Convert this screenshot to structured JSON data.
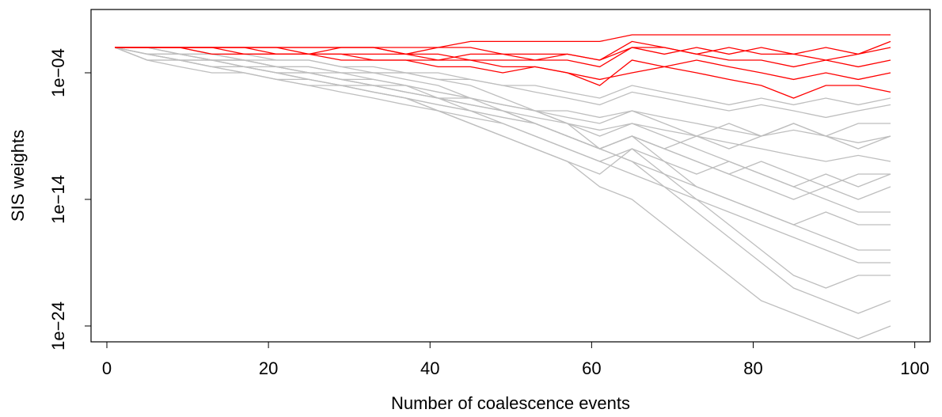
{
  "chart_data": {
    "type": "line",
    "ylog": true,
    "xlabel": "Number of coalescence events",
    "ylabel": "SIS weights",
    "xlim": [
      -1.96,
      101.9
    ],
    "xticks": [
      0,
      20,
      40,
      60,
      80,
      100
    ],
    "ylim": [
      10,
      5.6e-26
    ],
    "yticks": [
      {
        "value": 0.0001,
        "label": "1e−04"
      },
      {
        "value": 1e-14,
        "label": "1e−14"
      },
      {
        "value": 1e-24,
        "label": "1e−24"
      }
    ],
    "x": [
      1,
      5,
      9,
      13,
      17,
      21,
      25,
      29,
      33,
      37,
      41,
      45,
      49,
      53,
      57,
      61,
      65,
      69,
      73,
      77,
      81,
      85,
      89,
      93,
      97
    ],
    "series": [
      {
        "color": "#bebebe",
        "values": [
          0.01,
          0.003,
          0.001,
          0.001,
          0.0003,
          0.0001,
          3e-05,
          1e-05,
          1e-05,
          3e-06,
          1e-06,
          1e-06,
          3e-07,
          1e-07,
          1e-07,
          3e-08,
          1e-07,
          3e-08,
          1e-08,
          3e-09,
          1e-09,
          3e-09,
          1e-09,
          3e-10,
          1e-09
        ]
      },
      {
        "color": "#bebebe",
        "values": [
          0.01,
          0.001,
          0.001,
          0.0003,
          0.0003,
          0.0001,
          0.0001,
          3e-05,
          3e-05,
          1e-05,
          1e-06,
          3e-07,
          1e-07,
          1e-08,
          1e-09,
          1e-10,
          1e-09,
          1e-10,
          1e-11,
          1e-12,
          1e-11,
          1e-12,
          1e-13,
          1e-12,
          1e-12
        ]
      },
      {
        "color": "#bebebe",
        "values": [
          0.01,
          0.003,
          0.003,
          0.001,
          0.001,
          0.0003,
          0.0001,
          0.0001,
          3e-05,
          1e-05,
          3e-06,
          1e-06,
          3e-07,
          1e-07,
          1e-08,
          1e-09,
          1e-08,
          1e-09,
          1e-10,
          1e-11,
          1e-12,
          1e-13,
          1e-14,
          1e-15,
          1e-15
        ]
      },
      {
        "color": "#bebebe",
        "values": [
          0.01,
          0.003,
          0.001,
          0.001,
          0.001,
          0.0003,
          0.0003,
          0.0001,
          0.0001,
          3e-05,
          1e-05,
          1e-06,
          1e-07,
          1e-08,
          1e-09,
          1e-10,
          1e-11,
          1e-12,
          1e-13,
          1e-14,
          1e-15,
          1e-16,
          1e-17,
          1e-18,
          1e-18
        ]
      },
      {
        "color": "#bebebe",
        "values": [
          0.01,
          0.01,
          0.003,
          0.003,
          0.001,
          0.001,
          0.001,
          0.0003,
          0.0001,
          0.0001,
          3e-05,
          1e-05,
          1e-06,
          1e-07,
          1e-08,
          1e-10,
          1e-11,
          1e-13,
          1e-15,
          1e-17,
          1e-19,
          1e-21,
          1e-22,
          1e-23,
          1e-22
        ]
      },
      {
        "color": "#bebebe",
        "values": [
          0.01,
          0.003,
          0.003,
          0.001,
          0.0003,
          0.0001,
          3e-05,
          1e-05,
          3e-06,
          1e-06,
          1e-07,
          1e-08,
          1e-09,
          1e-10,
          1e-11,
          1e-12,
          1e-10,
          1e-12,
          1e-14,
          1e-16,
          1e-18,
          1e-20,
          1e-21,
          1e-20,
          1e-20
        ]
      },
      {
        "color": "#bebebe",
        "values": [
          0.01,
          0.01,
          0.003,
          0.001,
          0.001,
          0.0003,
          0.0003,
          0.0001,
          0.0001,
          0.0001,
          3e-05,
          3e-05,
          1e-05,
          1e-05,
          3e-06,
          1e-06,
          1e-05,
          3e-06,
          1e-06,
          3e-07,
          1e-06,
          3e-07,
          1e-06,
          3e-07,
          1e-06
        ]
      },
      {
        "color": "#bebebe",
        "values": [
          0.01,
          0.001,
          0.0003,
          0.0001,
          0.0001,
          3e-05,
          1e-05,
          1e-05,
          3e-06,
          1e-06,
          3e-07,
          1e-07,
          3e-08,
          1e-08,
          1e-09,
          1e-10,
          1e-09,
          1e-10,
          1e-09,
          1e-10,
          1e-09,
          1e-08,
          1e-09,
          1e-10,
          1e-09
        ]
      },
      {
        "color": "#bebebe",
        "values": [
          0.01,
          0.003,
          0.001,
          0.0003,
          0.0001,
          3e-05,
          1e-05,
          3e-06,
          1e-06,
          3e-07,
          1e-07,
          3e-08,
          1e-08,
          1e-09,
          1e-10,
          1e-11,
          1e-10,
          1e-11,
          1e-12,
          1e-11,
          1e-12,
          1e-13,
          1e-12,
          1e-13,
          1e-12
        ]
      },
      {
        "color": "#bebebe",
        "values": [
          0.01,
          0.01,
          0.01,
          0.003,
          0.003,
          0.001,
          0.001,
          0.0003,
          0.0003,
          0.0001,
          0.0001,
          3e-05,
          1e-05,
          3e-06,
          1e-06,
          3e-07,
          3e-06,
          1e-06,
          3e-07,
          1e-07,
          3e-07,
          1e-07,
          3e-08,
          1e-07,
          3e-07
        ]
      },
      {
        "color": "#bebebe",
        "values": [
          0.01,
          0.003,
          0.001,
          0.001,
          0.0003,
          0.0001,
          0.0001,
          3e-05,
          1e-05,
          3e-06,
          1e-06,
          3e-07,
          1e-07,
          1e-08,
          1e-09,
          1e-10,
          1e-09,
          1e-11,
          1e-13,
          1e-14,
          1e-15,
          1e-16,
          1e-15,
          1e-16,
          1e-16
        ]
      },
      {
        "color": "#bebebe",
        "values": [
          0.01,
          0.001,
          0.001,
          0.0003,
          0.0001,
          3e-05,
          3e-05,
          1e-05,
          3e-06,
          1e-06,
          3e-07,
          1e-07,
          3e-08,
          1e-08,
          1e-09,
          1e-10,
          1e-09,
          1e-10,
          1e-11,
          1e-12,
          1e-13,
          1e-14,
          1e-13,
          1e-14,
          1e-13
        ]
      },
      {
        "color": "#bebebe",
        "values": [
          0.01,
          0.003,
          0.003,
          0.001,
          0.001,
          0.0003,
          0.0001,
          3e-05,
          1e-05,
          1e-05,
          3e-06,
          1e-06,
          3e-07,
          1e-07,
          3e-08,
          1e-08,
          1e-07,
          1e-08,
          1e-09,
          1e-08,
          1e-09,
          1e-08,
          1e-09,
          1e-08,
          1e-08
        ]
      },
      {
        "color": "#bebebe",
        "values": [
          0.01,
          0.01,
          0.003,
          0.003,
          0.001,
          0.0003,
          0.0001,
          3e-05,
          1e-05,
          3e-06,
          1e-06,
          1e-07,
          1e-08,
          1e-09,
          1e-10,
          1e-11,
          1e-12,
          1e-13,
          1e-14,
          1e-15,
          1e-16,
          1e-17,
          1e-18,
          1e-19,
          1e-19
        ]
      },
      {
        "color": "#bebebe",
        "values": [
          0.01,
          0.003,
          0.001,
          0.0003,
          0.0003,
          0.0001,
          3e-05,
          1e-05,
          3e-06,
          1e-06,
          1e-07,
          1e-08,
          1e-09,
          1e-10,
          1e-11,
          1e-13,
          1e-14,
          1e-16,
          1e-18,
          1e-20,
          1e-22,
          1e-23,
          1e-24,
          1e-25,
          1e-24
        ]
      },
      {
        "color": "#bebebe",
        "values": [
          0.01,
          0.01,
          0.003,
          0.001,
          0.0003,
          0.0003,
          0.0001,
          3e-05,
          1e-05,
          3e-06,
          1e-06,
          3e-07,
          1e-07,
          3e-08,
          1e-08,
          3e-09,
          1e-08,
          3e-09,
          1e-09,
          3e-10,
          1e-10,
          3e-11,
          1e-11,
          3e-11,
          1e-11
        ]
      },
      {
        "color": "#ff0000",
        "values": [
          0.01,
          0.01,
          0.01,
          0.01,
          0.01,
          0.01,
          0.01,
          0.01,
          0.01,
          0.01,
          0.01,
          0.03,
          0.03,
          0.03,
          0.03,
          0.03,
          0.1,
          0.1,
          0.1,
          0.1,
          0.1,
          0.1,
          0.1,
          0.1,
          0.1
        ]
      },
      {
        "color": "#ff0000",
        "values": [
          0.01,
          0.01,
          0.01,
          0.01,
          0.01,
          0.003,
          0.003,
          0.01,
          0.01,
          0.003,
          0.003,
          0.001,
          0.001,
          0.001,
          0.003,
          0.001,
          0.03,
          0.01,
          0.003,
          0.001,
          0.001,
          0.0003,
          0.001,
          0.0003,
          0.001
        ]
      },
      {
        "color": "#ff0000",
        "values": [
          0.01,
          0.01,
          0.01,
          0.003,
          0.003,
          0.003,
          0.003,
          0.001,
          0.001,
          0.001,
          0.0003,
          0.0003,
          0.0001,
          0.0003,
          0.0001,
          1e-05,
          0.001,
          0.0003,
          0.0001,
          3e-05,
          1e-05,
          1e-06,
          1e-05,
          1e-05,
          3e-06
        ]
      },
      {
        "color": "#ff0000",
        "values": [
          0.01,
          0.01,
          0.01,
          0.01,
          0.01,
          0.01,
          0.003,
          0.003,
          0.003,
          0.003,
          0.001,
          0.003,
          0.003,
          0.001,
          0.001,
          0.0003,
          0.01,
          0.003,
          0.01,
          0.003,
          0.01,
          0.003,
          0.01,
          0.003,
          0.03
        ]
      },
      {
        "color": "#ff0000",
        "values": [
          0.01,
          0.01,
          0.01,
          0.01,
          0.003,
          0.003,
          0.003,
          0.003,
          0.001,
          0.001,
          0.001,
          0.001,
          0.0003,
          0.0003,
          0.0001,
          3e-05,
          0.0001,
          0.0003,
          0.001,
          0.0003,
          0.0001,
          3e-05,
          0.0001,
          3e-05,
          0.0001
        ]
      },
      {
        "color": "#ff0000",
        "values": [
          0.01,
          0.01,
          0.01,
          0.01,
          0.01,
          0.01,
          0.01,
          0.01,
          0.01,
          0.003,
          0.01,
          0.01,
          0.003,
          0.003,
          0.003,
          0.001,
          0.01,
          0.01,
          0.003,
          0.01,
          0.003,
          0.003,
          0.001,
          0.003,
          0.01
        ]
      }
    ]
  }
}
